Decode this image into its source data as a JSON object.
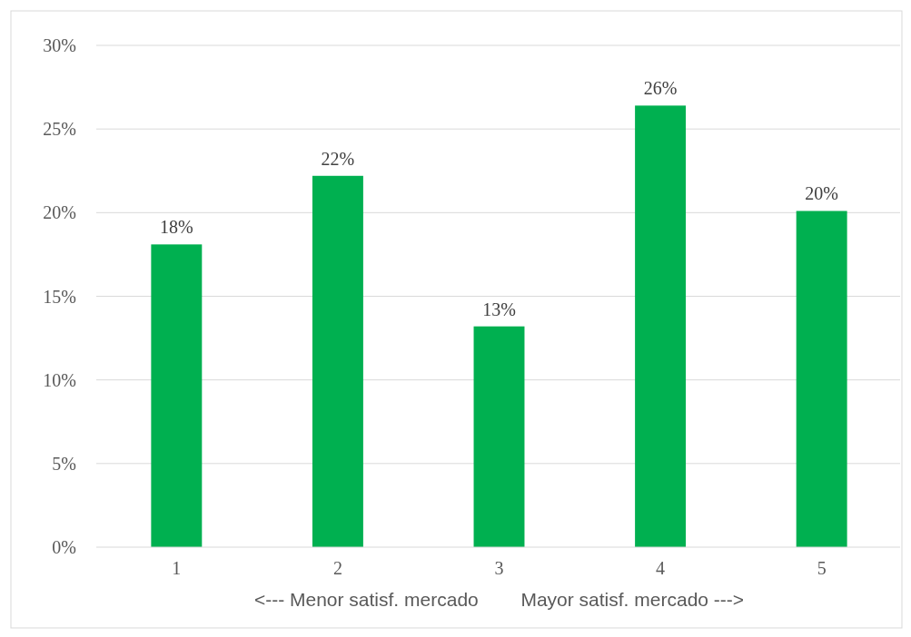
{
  "chart_data": {
    "type": "bar",
    "categories": [
      "1",
      "2",
      "3",
      "4",
      "5"
    ],
    "xlabel": "<--- Menor satisf. mercado        Mayor satisf. mercado --->",
    "values": [
      18.1,
      22.2,
      13.2,
      26.4,
      20.1
    ],
    "color": "#00b050",
    "value_labels": [
      "18%",
      "22%",
      "13%",
      "26%",
      "20%"
    ],
    "ylim": [
      0,
      30
    ],
    "yticks": [
      {
        "value": 0,
        "label": "0%"
      },
      {
        "value": 5,
        "label": "5%"
      },
      {
        "value": 10,
        "label": "10%"
      },
      {
        "value": 15,
        "label": "15%"
      },
      {
        "value": 20,
        "label": "20%"
      },
      {
        "value": 25,
        "label": "25%"
      },
      {
        "value": 30,
        "label": "30%"
      }
    ],
    "grid": "y"
  }
}
